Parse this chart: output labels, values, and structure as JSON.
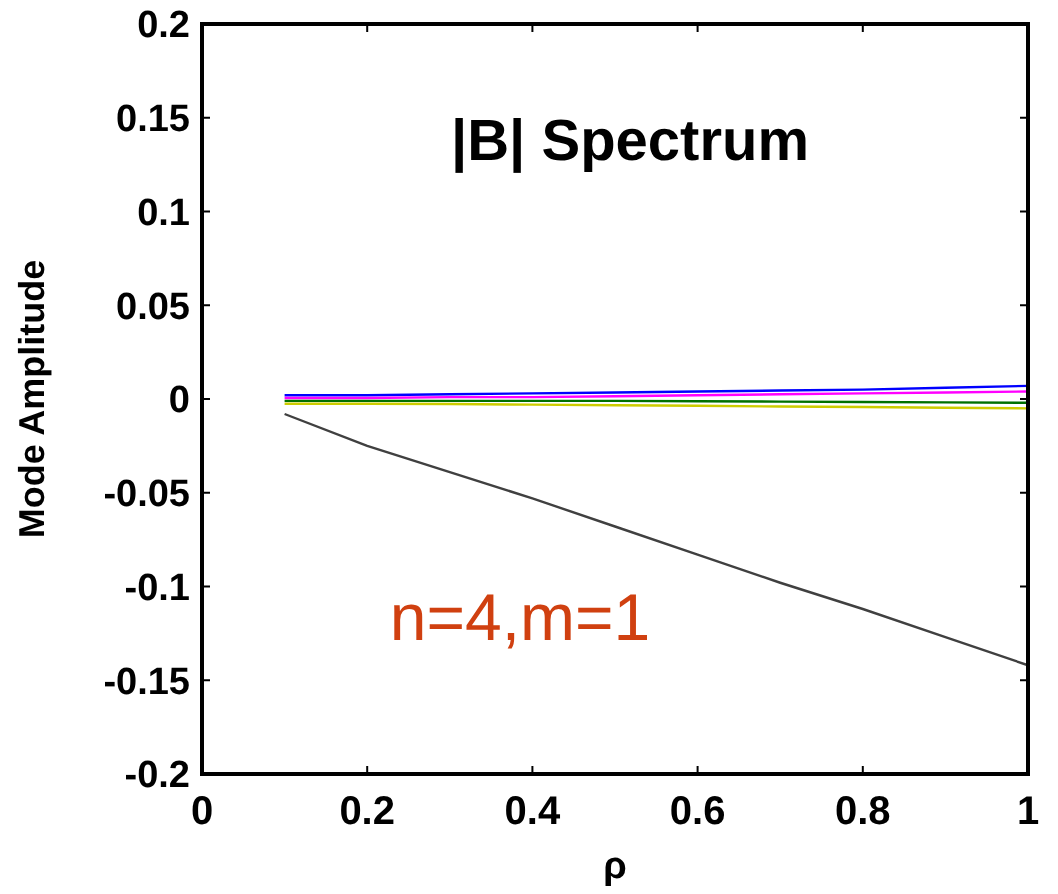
{
  "chart_data": {
    "type": "line",
    "xlabel": "ρ",
    "ylabel": "Mode Amplitude",
    "annotations": [
      "|B| Spectrum",
      "n=4,m=1"
    ],
    "xlim": [
      0,
      1
    ],
    "ylim": [
      -0.2,
      0.2
    ],
    "xticks": [
      0,
      0.2,
      0.4,
      0.6,
      0.8,
      1
    ],
    "yticks": [
      -0.2,
      -0.15,
      -0.1,
      -0.05,
      0,
      0.05,
      0.1,
      0.15,
      0.2
    ],
    "grid": false,
    "marker": "none",
    "line_style": "solid",
    "x": [
      0.1,
      0.2,
      0.3,
      0.4,
      0.5,
      0.6,
      0.7,
      0.8,
      0.9,
      1
    ],
    "series": [
      {
        "color": "#404040",
        "values": [
          -0.008,
          -0.025,
          -0.039,
          -0.053,
          -0.068,
          -0.083,
          -0.098,
          -0.112,
          -0.127,
          -0.142
        ]
      },
      {
        "color": "#0000ff",
        "values": [
          0.002,
          0.002,
          0.0025,
          0.003,
          0.0035,
          0.004,
          0.0045,
          0.005,
          0.006,
          0.007
        ]
      },
      {
        "color": "#ff00ff",
        "values": [
          0.0005,
          0.0005,
          0.001,
          0.001,
          0.0015,
          0.002,
          0.0025,
          0.003,
          0.0035,
          0.004
        ]
      },
      {
        "color": "#007000",
        "values": [
          -0.001,
          -0.001,
          -0.001,
          -0.001,
          -0.001,
          -0.0012,
          -0.0014,
          -0.0016,
          -0.0018,
          -0.002
        ]
      },
      {
        "color": "#cccc00",
        "values": [
          -0.0025,
          -0.0025,
          -0.0027,
          -0.003,
          -0.0033,
          -0.0036,
          -0.004,
          -0.0043,
          -0.0047,
          -0.005
        ]
      }
    ]
  }
}
